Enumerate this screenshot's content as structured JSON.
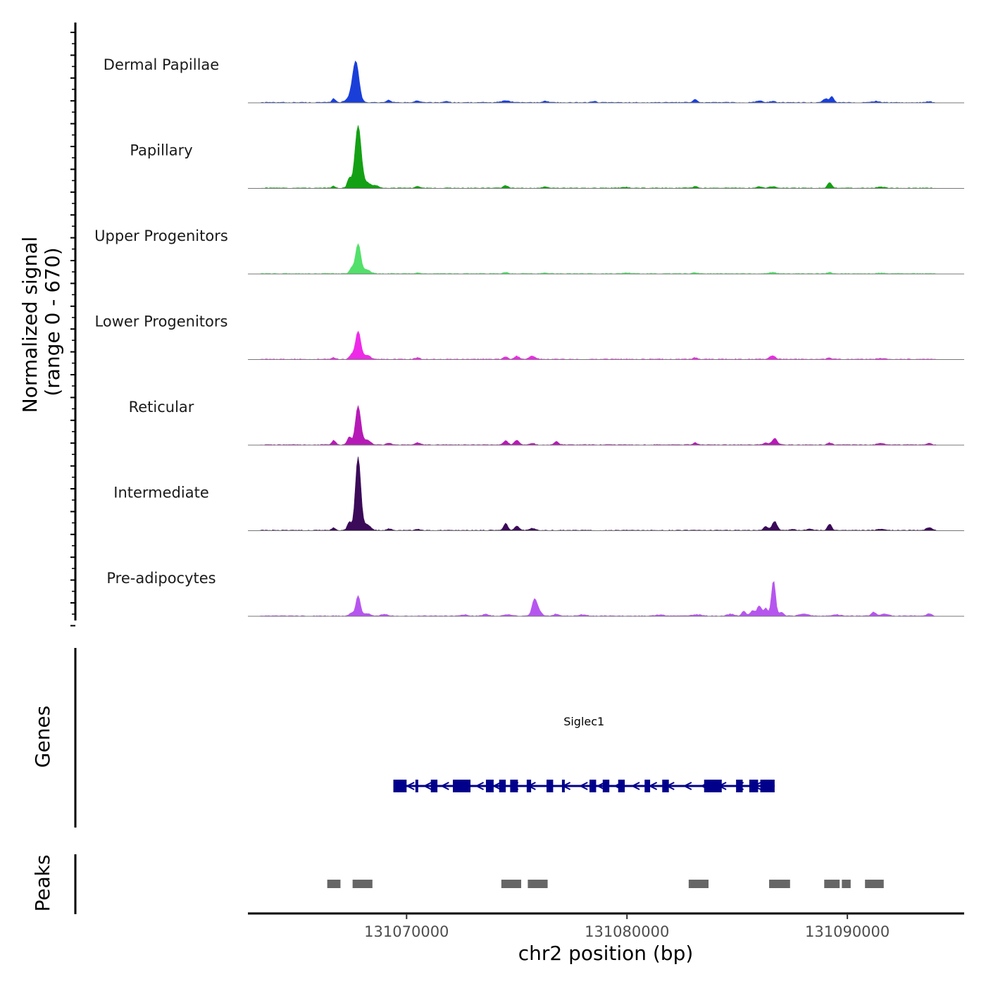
{
  "chart_data": {
    "type": "area",
    "title": "",
    "xlabel": "chr2 position (bp)",
    "ylabel": "Normalized signal",
    "ylabel_sub": "(range 0 - 670)",
    "ylim": [
      0,
      670
    ],
    "xlim": [
      131062800,
      131095300
    ],
    "x_ticks": [
      131070000,
      131080000,
      131090000
    ],
    "x_tick_labels": [
      "131070000",
      "131080000",
      "131090000"
    ],
    "tracks": [
      {
        "name": "Dermal Papillae",
        "color": "#1a3fd9",
        "peaks": [
          [
            131066700,
            60,
            80
          ],
          [
            131067700,
            600,
            140
          ],
          [
            131067500,
            90,
            200
          ],
          [
            131069200,
            40,
            90
          ],
          [
            131070500,
            30,
            100
          ],
          [
            131071800,
            20,
            100
          ],
          [
            131074500,
            25,
            200
          ],
          [
            131076300,
            20,
            150
          ],
          [
            131078500,
            18,
            120
          ],
          [
            131083100,
            45,
            100
          ],
          [
            131086000,
            25,
            150
          ],
          [
            131086600,
            20,
            100
          ],
          [
            131089000,
            60,
            120
          ],
          [
            131089300,
            90,
            90
          ],
          [
            131091300,
            20,
            150
          ],
          [
            131093700,
            15,
            100
          ]
        ]
      },
      {
        "name": "Papillary",
        "color": "#14a014",
        "peaks": [
          [
            131066700,
            30,
            80
          ],
          [
            131067400,
            150,
            90
          ],
          [
            131067800,
            980,
            140
          ],
          [
            131068200,
            80,
            150
          ],
          [
            131068600,
            40,
            150
          ],
          [
            131070500,
            30,
            100
          ],
          [
            131074500,
            40,
            100
          ],
          [
            131076300,
            20,
            150
          ],
          [
            131079900,
            15,
            150
          ],
          [
            131083100,
            25,
            100
          ],
          [
            131086000,
            20,
            120
          ],
          [
            131086600,
            25,
            120
          ],
          [
            131089200,
            90,
            90
          ],
          [
            131091500,
            20,
            150
          ]
        ]
      },
      {
        "name": "Upper Progenitors",
        "color": "#52e06a",
        "peaks": [
          [
            131067500,
            80,
            90
          ],
          [
            131067800,
            470,
            120
          ],
          [
            131068200,
            60,
            150
          ],
          [
            131070500,
            15,
            100
          ],
          [
            131074500,
            20,
            100
          ],
          [
            131076300,
            12,
            150
          ],
          [
            131080000,
            12,
            150
          ],
          [
            131083100,
            15,
            100
          ],
          [
            131086600,
            18,
            150
          ],
          [
            131089200,
            20,
            100
          ],
          [
            131091500,
            10,
            150
          ]
        ]
      },
      {
        "name": "Lower Progenitors",
        "color": "#ee2ae8",
        "peaks": [
          [
            131066700,
            25,
            80
          ],
          [
            131067500,
            70,
            90
          ],
          [
            131067800,
            440,
            120
          ],
          [
            131068200,
            60,
            150
          ],
          [
            131070500,
            25,
            100
          ],
          [
            131074500,
            40,
            100
          ],
          [
            131075000,
            50,
            100
          ],
          [
            131075700,
            50,
            150
          ],
          [
            131083100,
            25,
            100
          ],
          [
            131086600,
            55,
            120
          ],
          [
            131089200,
            20,
            100
          ],
          [
            131091500,
            15,
            150
          ]
        ]
      },
      {
        "name": "Reticular",
        "color": "#b61ab6",
        "peaks": [
          [
            131066700,
            70,
            80
          ],
          [
            131067400,
            130,
            90
          ],
          [
            131067800,
            610,
            120
          ],
          [
            131068200,
            80,
            150
          ],
          [
            131069200,
            30,
            100
          ],
          [
            131070500,
            30,
            100
          ],
          [
            131074500,
            60,
            100
          ],
          [
            131075000,
            70,
            100
          ],
          [
            131075700,
            25,
            100
          ],
          [
            131076800,
            50,
            100
          ],
          [
            131083100,
            30,
            100
          ],
          [
            131086300,
            30,
            120
          ],
          [
            131086700,
            100,
            110
          ],
          [
            131089200,
            30,
            100
          ],
          [
            131091500,
            25,
            150
          ],
          [
            131093700,
            20,
            100
          ]
        ]
      },
      {
        "name": "Intermediate",
        "color": "#3b0a59",
        "peaks": [
          [
            131066700,
            40,
            80
          ],
          [
            131067400,
            130,
            90
          ],
          [
            131067800,
            1150,
            120
          ],
          [
            131068200,
            90,
            150
          ],
          [
            131069200,
            25,
            100
          ],
          [
            131070500,
            20,
            100
          ],
          [
            131074500,
            110,
            90
          ],
          [
            131075000,
            70,
            100
          ],
          [
            131075700,
            30,
            150
          ],
          [
            131086300,
            60,
            100
          ],
          [
            131086700,
            140,
            110
          ],
          [
            131087500,
            20,
            120
          ],
          [
            131088300,
            20,
            120
          ],
          [
            131089200,
            100,
            90
          ],
          [
            131091500,
            20,
            150
          ],
          [
            131093700,
            45,
            120
          ]
        ]
      },
      {
        "name": "Pre-adipocytes",
        "color": "#b656ef",
        "peaks": [
          [
            131067500,
            50,
            90
          ],
          [
            131067800,
            320,
            100
          ],
          [
            131068200,
            40,
            150
          ],
          [
            131069000,
            25,
            150
          ],
          [
            131072600,
            20,
            150
          ],
          [
            131073600,
            25,
            150
          ],
          [
            131074600,
            25,
            150
          ],
          [
            131075800,
            250,
            110
          ],
          [
            131076000,
            80,
            120
          ],
          [
            131076800,
            30,
            120
          ],
          [
            131078000,
            20,
            150
          ],
          [
            131081500,
            20,
            200
          ],
          [
            131083200,
            20,
            200
          ],
          [
            131084700,
            30,
            150
          ],
          [
            131085300,
            70,
            100
          ],
          [
            131085700,
            80,
            100
          ],
          [
            131086000,
            160,
            100
          ],
          [
            131086300,
            120,
            100
          ],
          [
            131086650,
            560,
            90
          ],
          [
            131087000,
            60,
            100
          ],
          [
            131088000,
            30,
            200
          ],
          [
            131089500,
            20,
            200
          ],
          [
            131091200,
            60,
            100
          ],
          [
            131091700,
            30,
            150
          ],
          [
            131093700,
            40,
            100
          ]
        ]
      }
    ],
    "genes_track": {
      "label": "Genes",
      "genes": [
        {
          "name": "Siglec1",
          "start": 131069400,
          "end": 131086700,
          "strand": "-",
          "exons": [
            [
              131069400,
              131070000
            ],
            [
              131070400,
              131070500
            ],
            [
              131071100,
              131071400
            ],
            [
              131072100,
              131072900
            ],
            [
              131073600,
              131073950
            ],
            [
              131074200,
              131074500
            ],
            [
              131074700,
              131075050
            ],
            [
              131075450,
              131075650
            ],
            [
              131076350,
              131076650
            ],
            [
              131077050,
              131077150
            ],
            [
              131078300,
              131078600
            ],
            [
              131078900,
              131079200
            ],
            [
              131079600,
              131079900
            ],
            [
              131080800,
              131081050
            ],
            [
              131081600,
              131081900
            ],
            [
              131083500,
              131084300
            ],
            [
              131084950,
              131085250
            ],
            [
              131085550,
              131085950
            ],
            [
              131086050,
              131086700
            ]
          ]
        }
      ]
    },
    "peaks_track": {
      "label": "Peaks",
      "regions": [
        [
          131066400,
          131067000
        ],
        [
          131067550,
          131068450
        ],
        [
          131074300,
          131075200
        ],
        [
          131075500,
          131076400
        ],
        [
          131082800,
          131083700
        ],
        [
          131086450,
          131087400
        ],
        [
          131088950,
          131089650
        ],
        [
          131089750,
          131090150
        ],
        [
          131090800,
          131091650
        ]
      ]
    }
  }
}
